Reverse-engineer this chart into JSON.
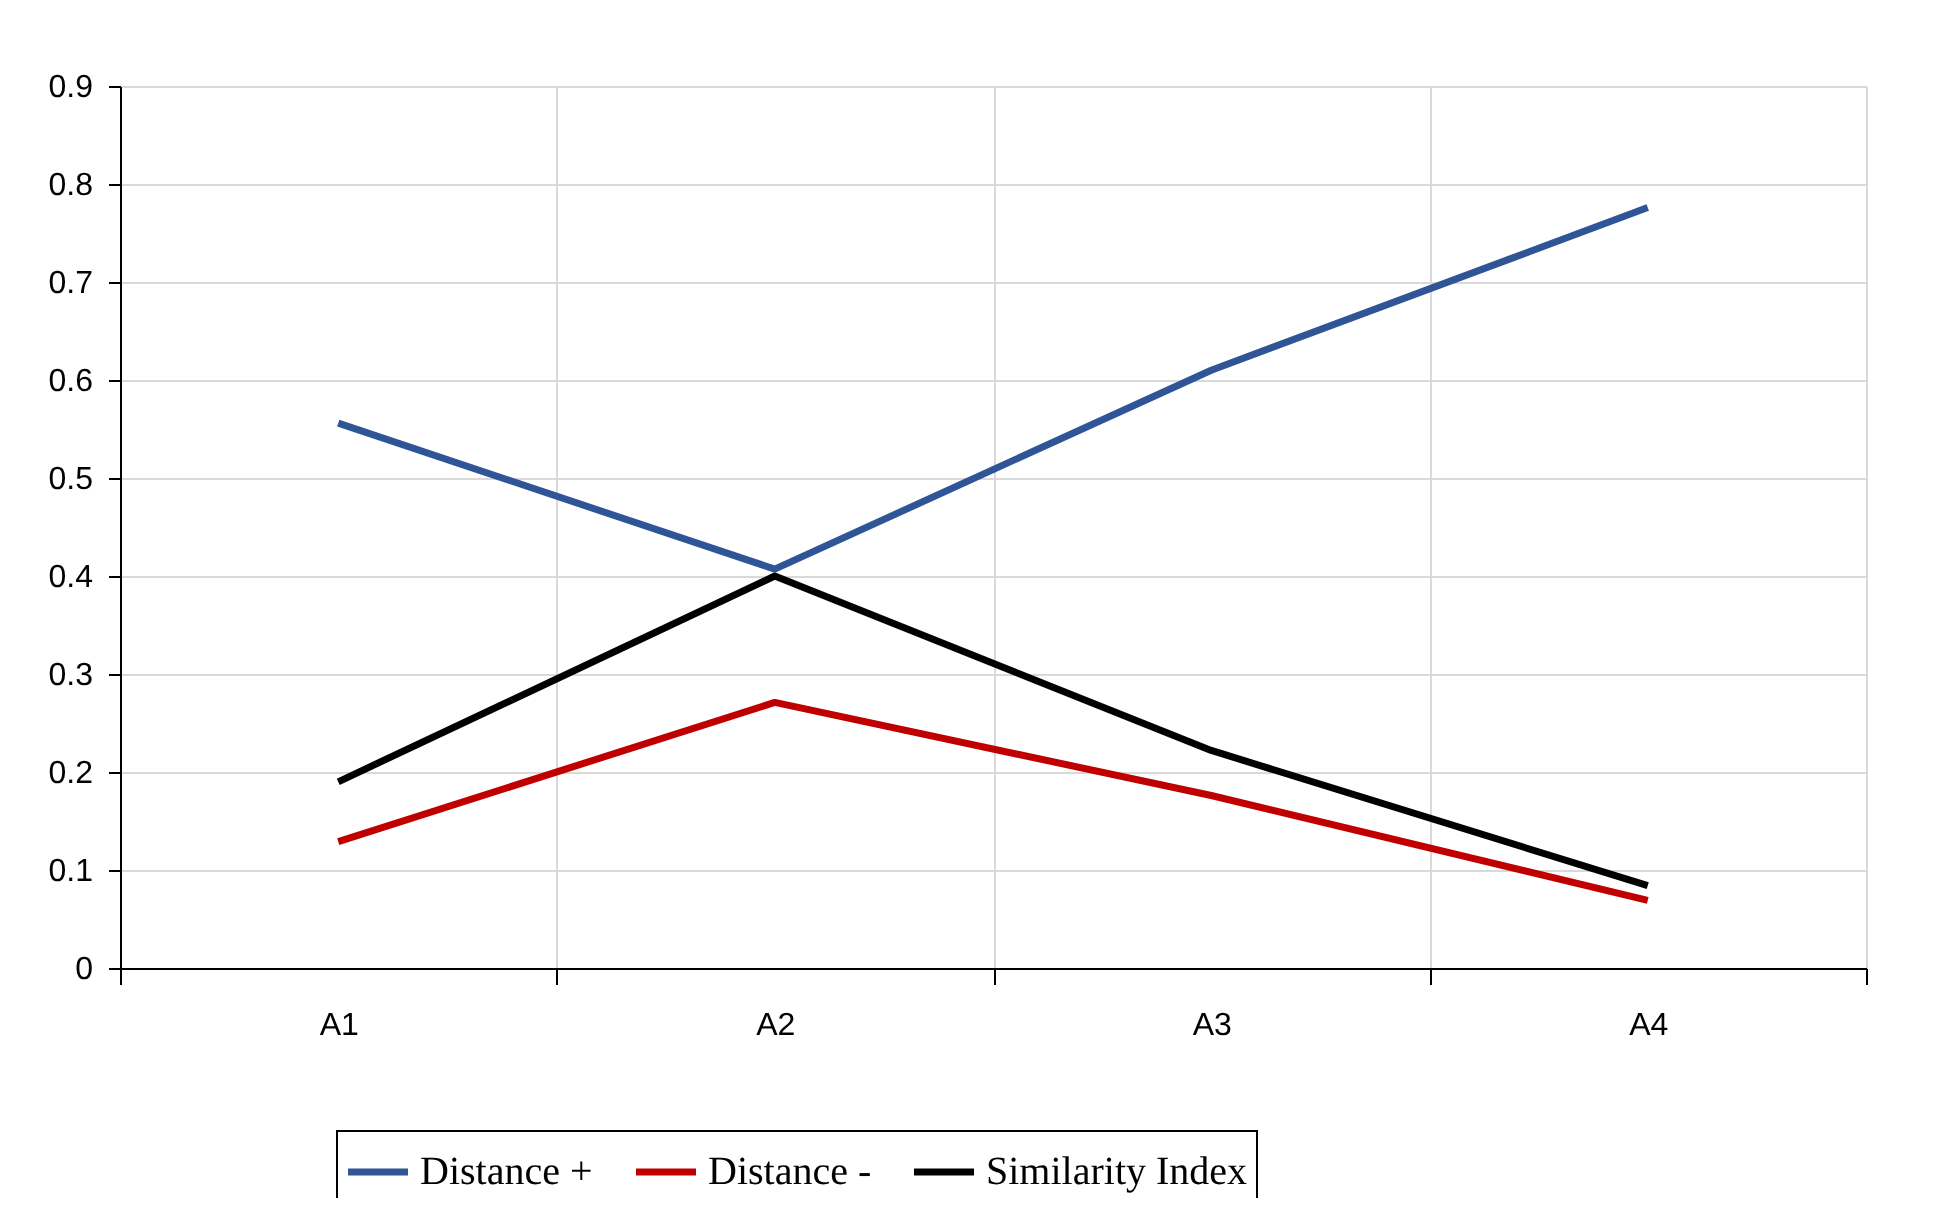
{
  "chart_data": {
    "type": "line",
    "categories": [
      "A1",
      "A2",
      "A3",
      "A4"
    ],
    "series": [
      {
        "name": "Distance +",
        "color": "#2f5597",
        "values": [
          0.556,
          0.407,
          0.61,
          0.776
        ]
      },
      {
        "name": "Distance -",
        "color": "#c00000",
        "values": [
          0.129,
          0.271,
          0.176,
          0.069
        ]
      },
      {
        "name": "Similarity Index",
        "color": "#000000",
        "values": [
          0.19,
          0.4,
          0.222,
          0.084
        ]
      }
    ],
    "ylim": [
      0,
      0.9
    ],
    "yticks": [
      {
        "value": 0,
        "label": "0"
      },
      0.1,
      0.2,
      0.3,
      0.4,
      0.5,
      0.6,
      0.7,
      0.8,
      0.9
    ],
    "grid": true,
    "legend": "bottom",
    "marker": "none",
    "line_style": "solid"
  }
}
